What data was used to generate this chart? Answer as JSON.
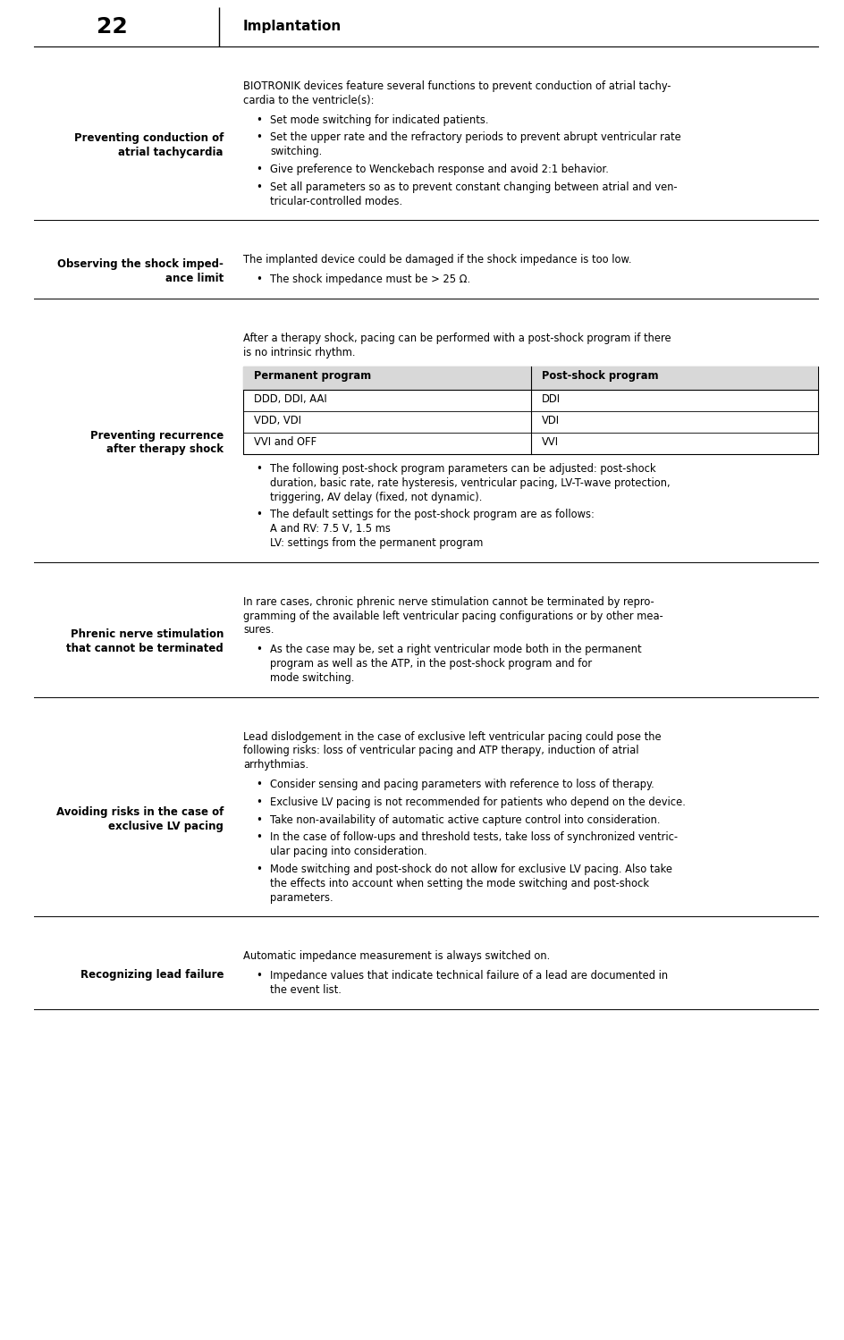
{
  "page_number": "22",
  "chapter_title": "Implantation",
  "bg_color": "#ffffff",
  "text_color": "#000000",
  "sections": [
    {
      "heading": "Preventing conduction of\natrial tachycardia",
      "intro": "BIOTRONIK devices feature several functions to prevent conduction of atrial tachy-\ncardia to the ventricle(s):",
      "bullets": [
        "Set mode switching for indicated patients.",
        "Set the upper rate and the refractory periods to prevent abrupt ventricular rate\nswitching.",
        "Give preference to Wenckebach response and avoid 2:1 behavior.",
        "Set all parameters so as to prevent constant changing between atrial and ven-\ntricular-controlled modes."
      ],
      "table": null,
      "extra_lines": null
    },
    {
      "heading": "Observing the shock imped-\nance limit",
      "intro": "The implanted device could be damaged if the shock impedance is too low.",
      "bullets": [
        "The shock impedance must be > 25 Ω."
      ],
      "table": null,
      "extra_lines": null
    },
    {
      "heading": "Preventing recurrence\nafter therapy shock",
      "intro": "After a therapy shock, pacing can be performed with a post-shock program if there\nis no intrinsic rhythm.",
      "table": {
        "headers": [
          "Permanent program",
          "Post-shock program"
        ],
        "rows": [
          [
            "DDD, DDI, AAI",
            "DDI"
          ],
          [
            "VDD, VDI",
            "VDI"
          ],
          [
            "VVI and OFF",
            "VVI"
          ]
        ]
      },
      "bullets": [
        "The following post-shock program parameters can be adjusted: post-shock\nduration, basic rate, rate hysteresis, ventricular pacing, LV-T-wave protection,\ntriggering, AV delay (fixed, not dynamic).",
        "The default settings for the post-shock program are as follows:"
      ],
      "extra_lines": [
        "A and RV: 7.5 V, 1.5 ms",
        "LV: settings from the permanent program"
      ]
    },
    {
      "heading": "Phrenic nerve stimulation\nthat cannot be terminated",
      "intro": "In rare cases, chronic phrenic nerve stimulation cannot be terminated by repro-\ngramming of the available left ventricular pacing configurations or by other mea-\nsures.",
      "bullets": [
        "As the case may be, set a right ventricular mode both in the permanent\nprogram as well as the ATP, in the post-shock program and for\nmode switching."
      ],
      "table": null,
      "extra_lines": null
    },
    {
      "heading": "Avoiding risks in the case of\nexclusive LV pacing",
      "intro": "Lead dislodgement in the case of exclusive left ventricular pacing could pose the\nfollowing risks: loss of ventricular pacing and ATP therapy, induction of atrial\narrhythmias.",
      "bullets": [
        "Consider sensing and pacing parameters with reference to loss of therapy.",
        "Exclusive LV pacing is not recommended for patients who depend on the device.",
        "Take non-availability of automatic active capture control into consideration.",
        "In the case of follow-ups and threshold tests, take loss of synchronized ventric-\nular pacing into consideration.",
        "Mode switching and post-shock do not allow for exclusive LV pacing. Also take\nthe effects into account when setting the mode switching and post-shock\nparameters."
      ],
      "table": null,
      "extra_lines": null
    },
    {
      "heading": "Recognizing lead failure",
      "intro": "Automatic impedance measurement is always switched on.",
      "bullets": [
        "Impedance values that indicate technical failure of a lead are documented in\nthe event list."
      ],
      "table": null,
      "extra_lines": null
    }
  ]
}
